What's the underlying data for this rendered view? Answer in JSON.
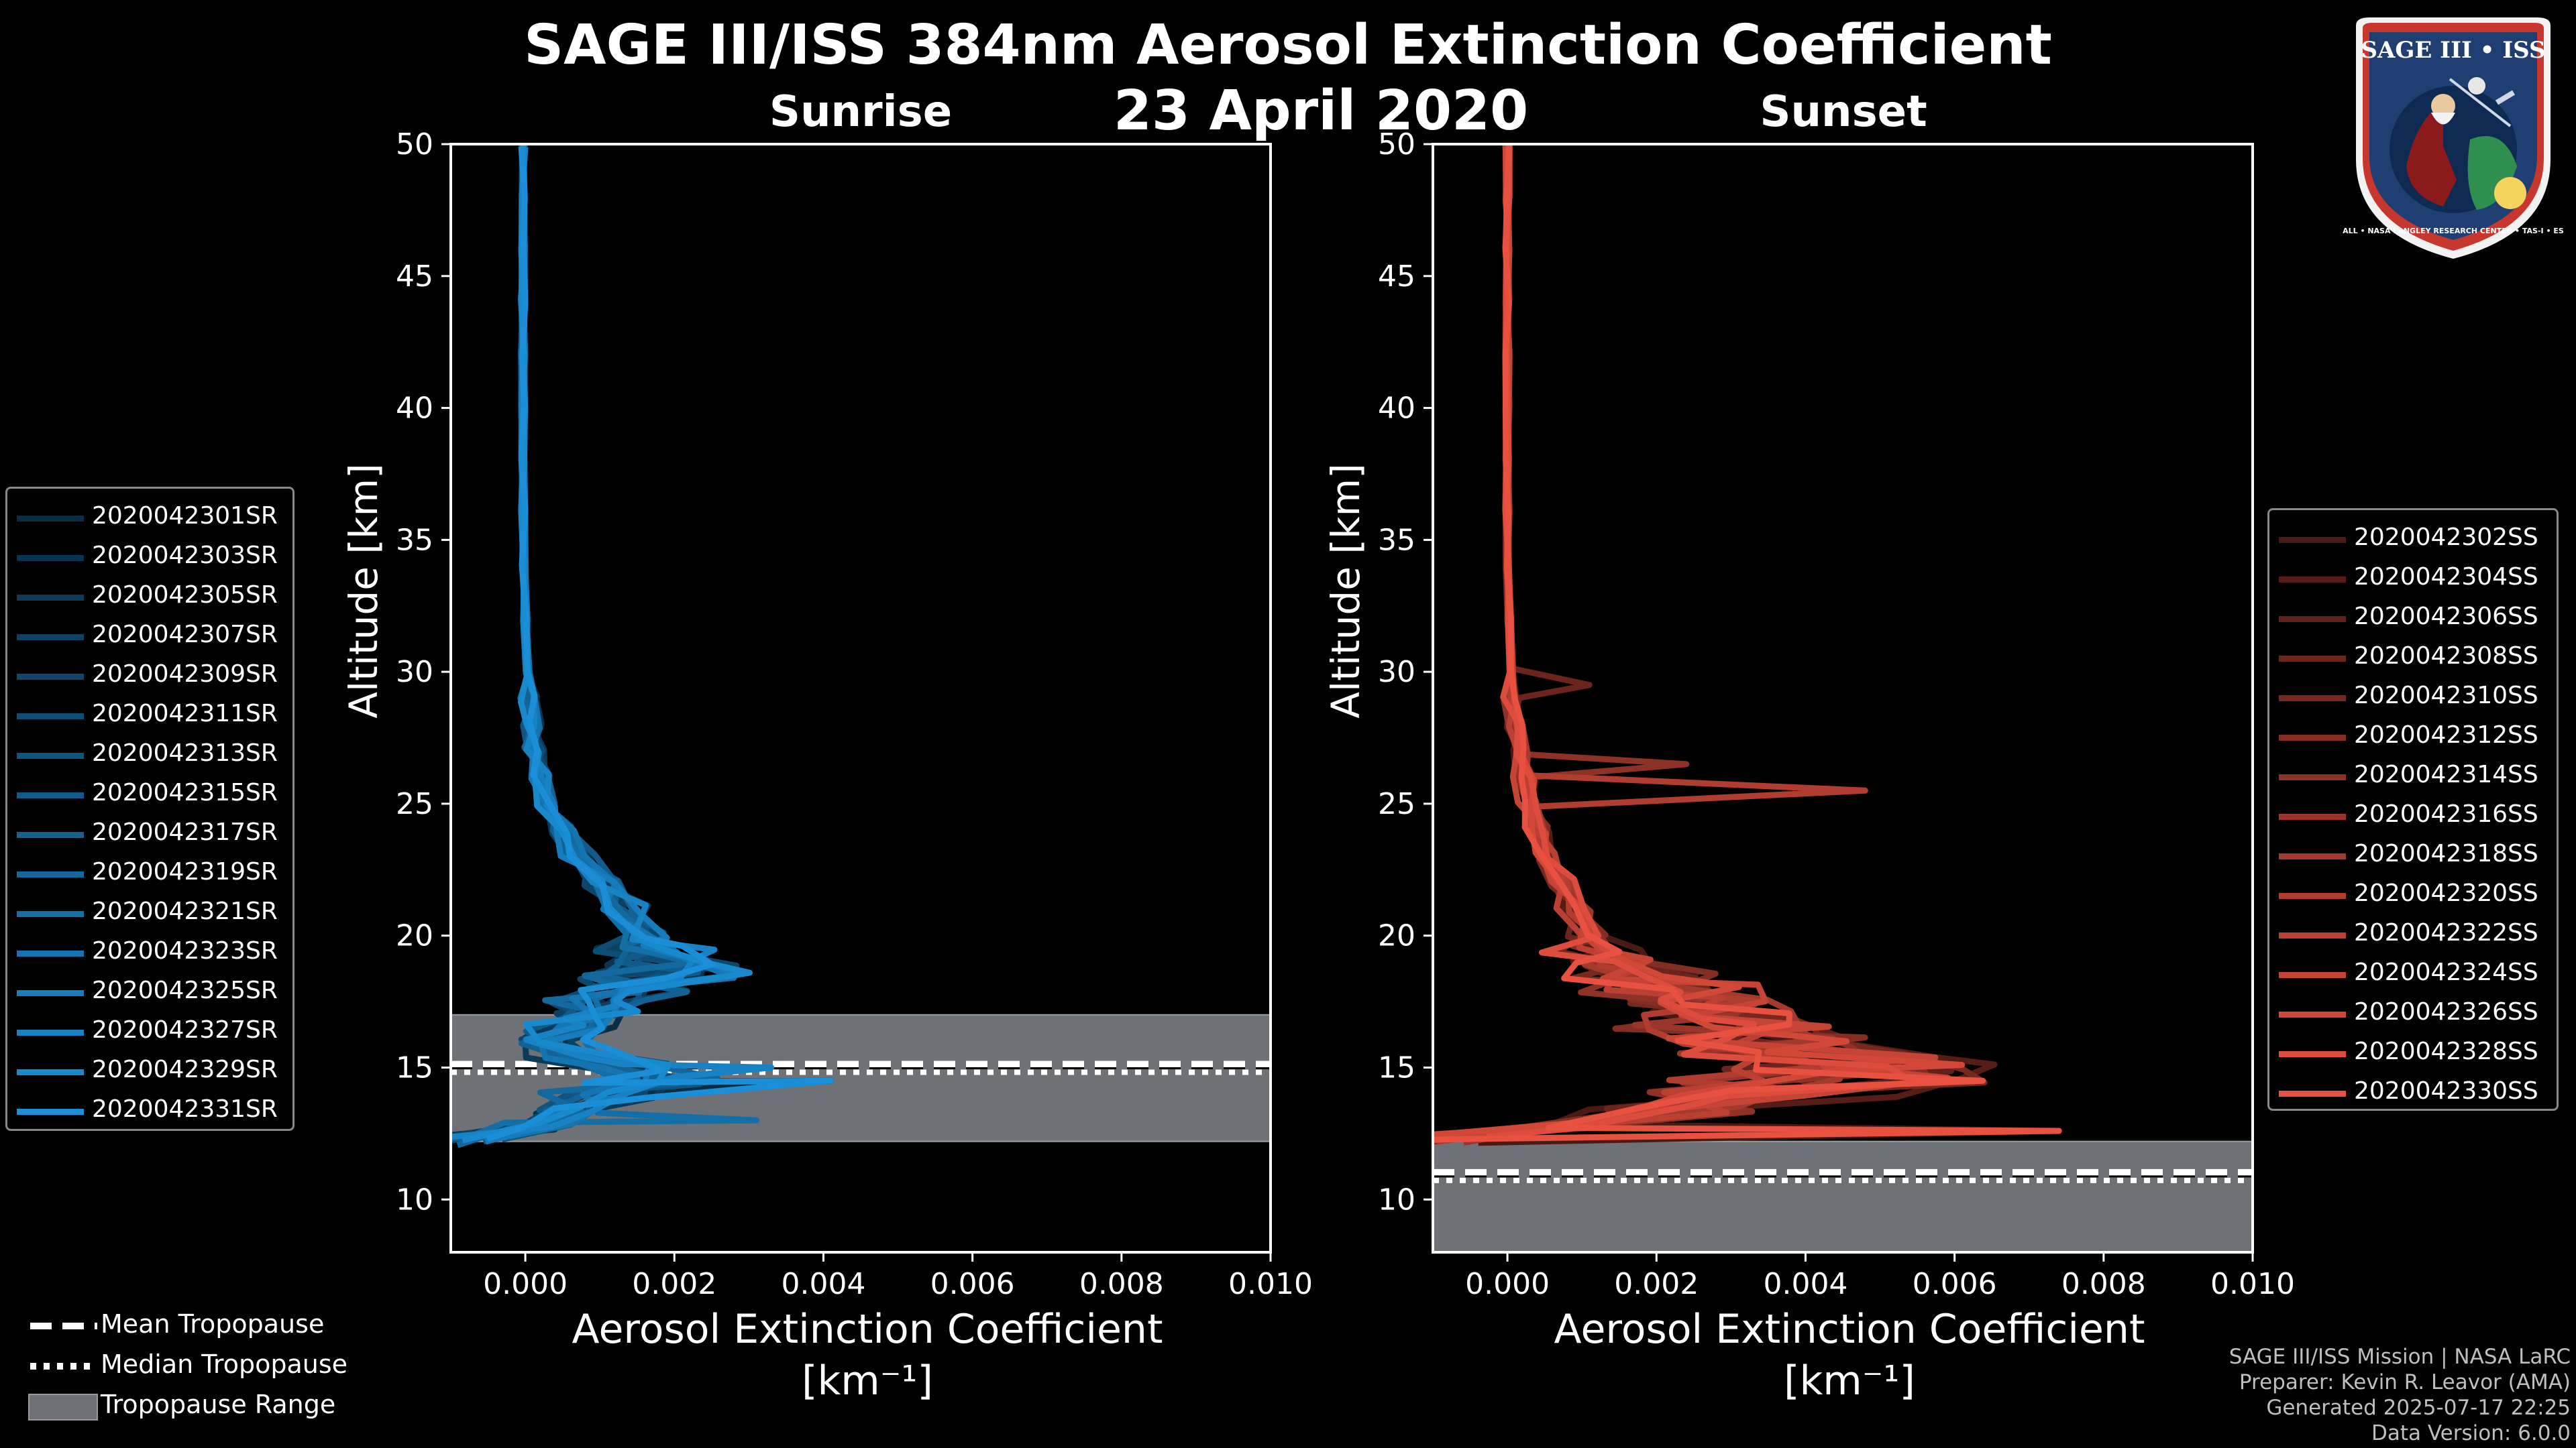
{
  "title": "SAGE III/ISS 384nm Aerosol Extinction Coefficient",
  "date": "23 April 2020",
  "colors": {
    "sunrise": "#1a8fd8",
    "sunset": "#e8503f",
    "tropo_band": "#6e7176",
    "axis": "#ffffff"
  },
  "chart_data": [
    {
      "type": "line",
      "panel": "Sunrise",
      "title": "Sunrise",
      "xlabel": "Aerosol Extinction Coefficient",
      "xlabel_unit": "[km⁻¹]",
      "ylabel": "Altitude [km]",
      "xlim": [
        -0.001,
        0.01
      ],
      "ylim": [
        8,
        50
      ],
      "x_ticks": [
        "0.000",
        "0.002",
        "0.004",
        "0.006",
        "0.008",
        "0.010"
      ],
      "x_tick_values": [
        0,
        0.002,
        0.004,
        0.006,
        0.008,
        0.01
      ],
      "y_ticks": [
        "10",
        "15",
        "20",
        "25",
        "30",
        "35",
        "40",
        "45",
        "50"
      ],
      "y_tick_values": [
        10,
        15,
        20,
        25,
        30,
        35,
        40,
        45,
        50
      ],
      "tropopause": {
        "mean_km": 15.0,
        "median_km": 15.0,
        "range_km": [
          12.2,
          17.0
        ]
      },
      "series_names": [
        "2020042301SR",
        "2020042303SR",
        "2020042305SR",
        "2020042307SR",
        "2020042309SR",
        "2020042311SR",
        "2020042313SR",
        "2020042315SR",
        "2020042317SR",
        "2020042319SR",
        "2020042321SR",
        "2020042323SR",
        "2020042325SR",
        "2020042327SR",
        "2020042329SR",
        "2020042331SR"
      ],
      "profile": {
        "altitude_km": [
          12.2,
          12.8,
          13.4,
          14.0,
          14.5,
          15.0,
          15.5,
          16.0,
          16.5,
          17.0,
          17.5,
          18.0,
          18.5,
          19.0,
          19.5,
          20.0,
          21.0,
          22.0,
          23.0,
          24.0,
          25.0,
          26.0,
          27.0,
          28.0,
          29.0,
          30.0,
          32.0,
          34.0,
          36.0,
          38.0,
          40.0,
          42.0,
          44.0,
          46.0,
          48.0,
          50.0
        ],
        "extinction_km-1": [
          -0.0009,
          0.0002,
          0.0006,
          0.0011,
          0.0016,
          0.0012,
          0.0006,
          0.0004,
          0.0007,
          0.0009,
          0.0012,
          0.0015,
          0.0018,
          0.0019,
          0.0017,
          0.0016,
          0.0013,
          0.001,
          0.0007,
          0.0005,
          0.0003,
          0.0002,
          0.00012,
          8e-05,
          5e-05,
          3e-05,
          0.0,
          -2e-05,
          -3e-05,
          -3e-05,
          -3e-05,
          -3e-05,
          -3e-05,
          -3e-05,
          -3e-05,
          -3e-05
        ]
      },
      "peak_spikes": [
        {
          "altitude_km": 14.5,
          "extinction": 0.0041
        },
        {
          "altitude_km": 15.0,
          "extinction": 0.0033
        },
        {
          "altitude_km": 13.0,
          "extinction": 0.0031
        }
      ]
    },
    {
      "type": "line",
      "panel": "Sunset",
      "title": "Sunset",
      "xlabel": "Aerosol Extinction Coefficient",
      "xlabel_unit": "[km⁻¹]",
      "ylabel": "Altitude [km]",
      "xlim": [
        -0.001,
        0.01
      ],
      "ylim": [
        8,
        50
      ],
      "x_ticks": [
        "0.000",
        "0.002",
        "0.004",
        "0.006",
        "0.008",
        "0.010"
      ],
      "x_tick_values": [
        0,
        0.002,
        0.004,
        0.006,
        0.008,
        0.01
      ],
      "y_ticks": [
        "10",
        "15",
        "20",
        "25",
        "30",
        "35",
        "40",
        "45",
        "50"
      ],
      "y_tick_values": [
        10,
        15,
        20,
        25,
        30,
        35,
        40,
        45,
        50
      ],
      "tropopause": {
        "mean_km": 10.9,
        "median_km": 10.9,
        "range_km": [
          8.0,
          12.2
        ]
      },
      "series_names": [
        "2020042302SS",
        "2020042304SS",
        "2020042306SS",
        "2020042308SS",
        "2020042310SS",
        "2020042312SS",
        "2020042314SS",
        "2020042316SS",
        "2020042318SS",
        "2020042320SS",
        "2020042322SS",
        "2020042324SS",
        "2020042326SS",
        "2020042328SS",
        "2020042330SS"
      ],
      "profile": {
        "altitude_km": [
          12.3,
          12.8,
          13.4,
          14.0,
          14.5,
          15.0,
          15.5,
          16.0,
          16.5,
          17.0,
          17.5,
          18.0,
          18.5,
          19.0,
          19.5,
          20.0,
          21.0,
          22.0,
          23.0,
          24.0,
          25.0,
          26.0,
          27.0,
          28.0,
          29.0,
          30.0,
          32.0,
          34.0,
          36.0,
          38.0,
          40.0,
          42.0,
          44.0,
          46.0,
          48.0,
          50.0
        ],
        "extinction_km-1": [
          -0.0009,
          0.0008,
          0.0022,
          0.0038,
          0.0045,
          0.0048,
          0.0042,
          0.0036,
          0.0032,
          0.0028,
          0.0024,
          0.0021,
          0.0018,
          0.0015,
          0.0013,
          0.0011,
          0.0009,
          0.0007,
          0.0005,
          0.0004,
          0.0003,
          0.00022,
          0.00015,
          0.0001,
          7e-05,
          5e-05,
          2e-05,
          0.0,
          0.0,
          0.0,
          0.0,
          0.0,
          0.0,
          0.0,
          0.0,
          0.0
        ]
      },
      "peak_spikes": [
        {
          "altitude_km": 12.6,
          "extinction": 0.0074
        },
        {
          "altitude_km": 15.1,
          "extinction": 0.0061
        },
        {
          "altitude_km": 25.5,
          "extinction": 0.0048
        },
        {
          "altitude_km": 26.5,
          "extinction": 0.0024
        },
        {
          "altitude_km": 29.5,
          "extinction": 0.0011
        }
      ]
    }
  ],
  "tropopause_legend": {
    "mean": "Mean Tropopause",
    "median": "Median Tropopause",
    "range": "Tropopause Range"
  },
  "logo": {
    "top_text": "SAGE III • ISS",
    "ring_text": "BALL • NASA LANGLEY RESEARCH CENTER • TAS-I • ESA"
  },
  "credits": [
    "SAGE III/ISS Mission | NASA LaRC",
    "Preparer: Kevin R. Leavor (AMA)",
    "Generated 2025-07-17 22:25",
    "Data Version: 6.0.0"
  ]
}
